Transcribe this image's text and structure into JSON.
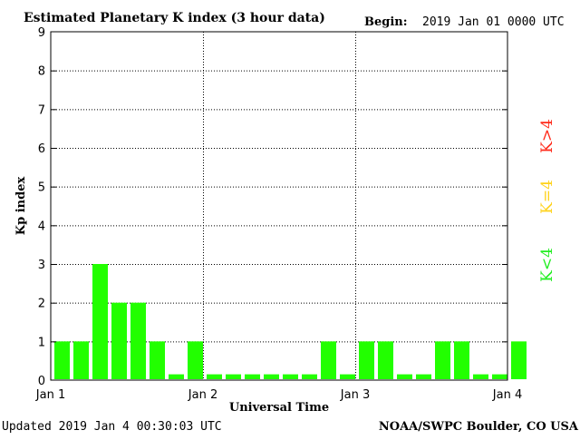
{
  "header": {
    "title": "Estimated Planetary K index (3 hour data)",
    "begin_label": "Begin:",
    "begin_value": "2019 Jan 01 0000 UTC"
  },
  "footer": {
    "updated": "Updated 2019 Jan  4 00:30:03 UTC",
    "source": "NOAA/SWPC Boulder, CO USA"
  },
  "legend": {
    "high": "K>4",
    "equal": "K=4",
    "low": "K<4",
    "colors": {
      "high": "#ff2a1a",
      "equal": "#ffd21a",
      "low": "#22ee22"
    }
  },
  "chart_data": {
    "type": "bar",
    "xlabel": "Universal Time",
    "ylabel": "Kp index",
    "ylim": [
      0,
      9
    ],
    "yticks": [
      "0",
      "1",
      "2",
      "3",
      "4",
      "5",
      "6",
      "7",
      "8",
      "9"
    ],
    "x_tick_labels": [
      "Jan 1",
      "Jan 2",
      "Jan 3",
      "Jan 4"
    ],
    "interval_hours": 3,
    "grid": true,
    "values": [
      1,
      1,
      3,
      2,
      2,
      1,
      0,
      1,
      0,
      0,
      0,
      0,
      0,
      0,
      1,
      0,
      1,
      1,
      0,
      0,
      1,
      1,
      0,
      0,
      1
    ],
    "bar_color": "#22ff00"
  }
}
